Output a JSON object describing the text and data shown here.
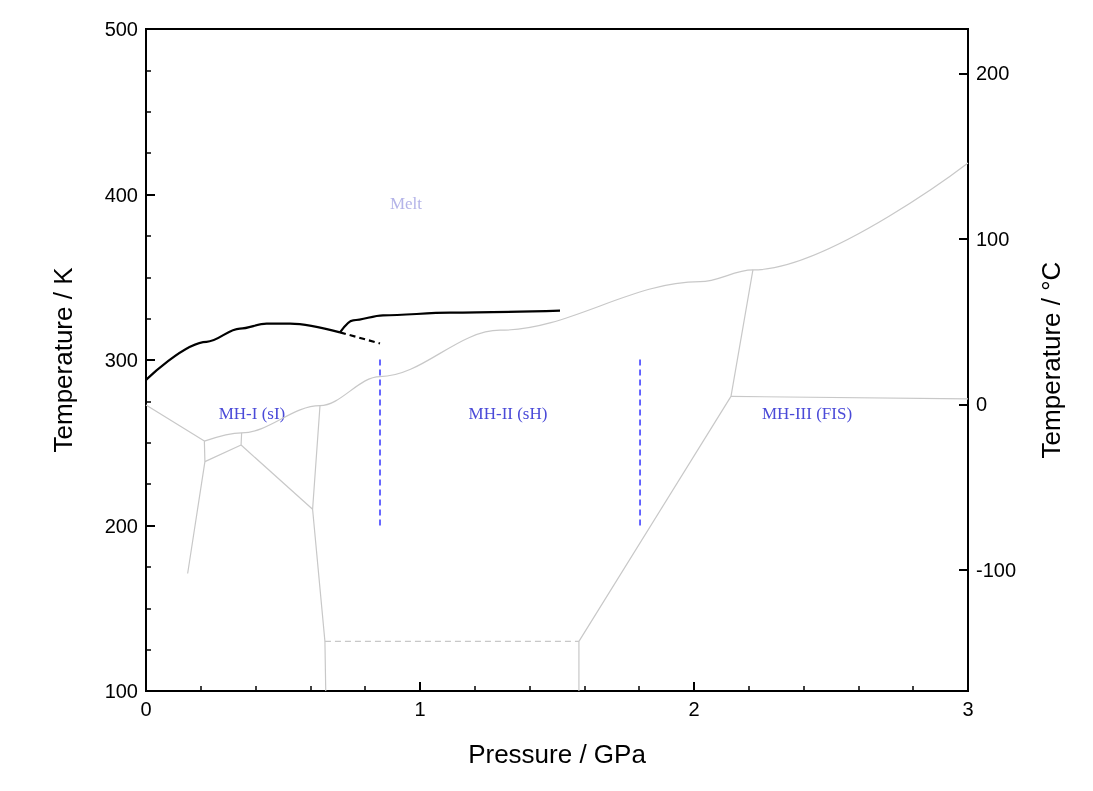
{
  "chart_data": {
    "type": "line",
    "xlabel": "Pressure / GPa",
    "ylabel": "Temperature / K",
    "y2label": "Temperature / °C",
    "xlim": [
      0,
      3
    ],
    "xticks": [
      0,
      1,
      2,
      3
    ],
    "ylim": [
      100,
      500
    ],
    "yticks": [
      100,
      200,
      300,
      400,
      500
    ],
    "y2lim": [
      -173.15,
      226.85
    ],
    "y2ticks": [
      -100,
      0,
      100,
      200
    ],
    "grid": false,
    "marker": "none",
    "series": [
      {
        "color": "#000000",
        "x": [
          0,
          0.221,
          0.343,
          0.44,
          0.526,
          0.708
        ],
        "values": [
          288,
          311,
          319,
          322,
          322,
          316.7
        ]
      },
      {
        "color": "#000000",
        "line_style": "dashed",
        "x": [
          0.708,
          0.854
        ],
        "values": [
          316.7,
          310
        ]
      },
      {
        "color": "#000000",
        "x": [
          0.708,
          0.756,
          0.865,
          1.11,
          1.511
        ],
        "values": [
          316.7,
          324,
          327,
          328.6,
          329.8
        ]
      },
      {
        "color": "#c8c8c8",
        "x": [
          0.213,
          0.349,
          0.635,
          0.854,
          1.292,
          2.022,
          2.215,
          3
        ],
        "values": [
          251,
          256,
          272.4,
          290,
          318,
          347.3,
          354.4,
          419
        ]
      },
      {
        "color": "#c8c8c8",
        "x": [
          0,
          0.213,
          0.215,
          0.152
        ],
        "values": [
          272.8,
          251,
          238.6,
          171
        ]
      },
      {
        "color": "#c8c8c8",
        "x": [
          0.215,
          0.347,
          0.349
        ],
        "values": [
          238.6,
          248.6,
          256
        ]
      },
      {
        "color": "#c8c8c8",
        "x": [
          0.347,
          0.608
        ],
        "values": [
          248.6,
          209.8
        ]
      },
      {
        "color": "#c8c8c8",
        "x": [
          0.635,
          0.608,
          0.653,
          0.656
        ],
        "values": [
          272.4,
          209.8,
          130,
          100
        ]
      },
      {
        "color": "#c8c8c8",
        "line_style": "dashed",
        "x": [
          0.653,
          1.58
        ],
        "values": [
          130,
          130
        ]
      },
      {
        "color": "#c8c8c8",
        "x": [
          1.58,
          1.58,
          2.135,
          2.215
        ],
        "values": [
          100,
          130,
          278,
          354.4
        ]
      },
      {
        "color": "#c8c8c8",
        "x": [
          2.135,
          3
        ],
        "values": [
          278,
          276.5
        ]
      },
      {
        "color": "#0000ff",
        "line_style": "dashed",
        "x": [
          0.854,
          0.854
        ],
        "values": [
          200,
          302
        ]
      },
      {
        "color": "#0000ff",
        "line_style": "dashed",
        "x": [
          1.803,
          1.803
        ],
        "values": [
          200,
          301
        ]
      }
    ],
    "annotations": [
      "Melt",
      "MH-I (sI)",
      "MH-II (sH)",
      "MH-III (FIS)"
    ]
  }
}
